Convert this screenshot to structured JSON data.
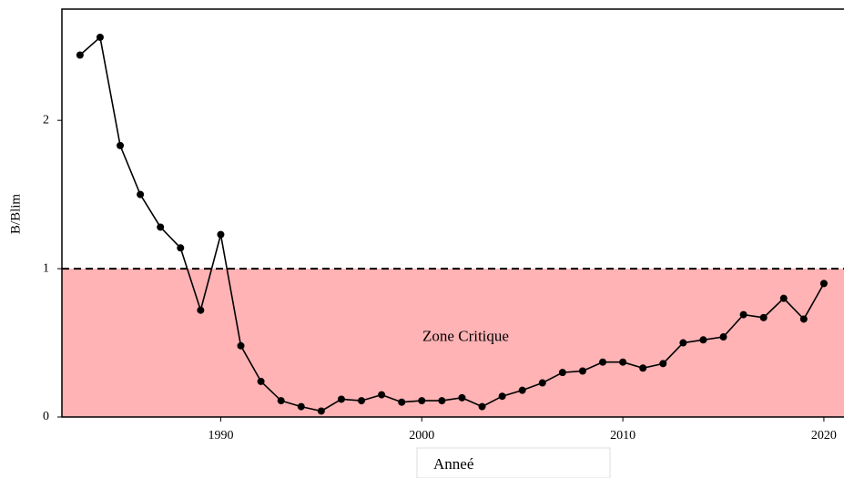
{
  "chart_data": {
    "type": "line",
    "x_label": "Anneé",
    "y_label": "B/Blim",
    "x": [
      1983,
      1984,
      1985,
      1986,
      1987,
      1988,
      1989,
      1990,
      1991,
      1992,
      1993,
      1994,
      1995,
      1996,
      1997,
      1998,
      1999,
      2000,
      2001,
      2002,
      2003,
      2004,
      2005,
      2006,
      2007,
      2008,
      2009,
      2010,
      2011,
      2012,
      2013,
      2014,
      2015,
      2016,
      2017,
      2018,
      2019,
      2020
    ],
    "series": [
      {
        "name": "B/Blim",
        "color": "#000000",
        "values": [
          2.44,
          2.56,
          1.83,
          1.5,
          1.28,
          1.14,
          0.72,
          1.23,
          0.48,
          0.24,
          0.11,
          0.07,
          0.04,
          0.12,
          0.11,
          0.15,
          0.1,
          0.11,
          0.11,
          0.13,
          0.07,
          0.14,
          0.18,
          0.23,
          0.3,
          0.31,
          0.37,
          0.37,
          0.33,
          0.36,
          0.5,
          0.52,
          0.54,
          0.69,
          0.67,
          0.8,
          0.66,
          0.9
        ]
      }
    ],
    "xlim": [
      1982.1,
      2021
    ],
    "ylim": [
      0,
      2.75
    ],
    "xticks": [
      1990,
      2000,
      2010,
      2020
    ],
    "yticks": [
      0,
      1,
      2
    ],
    "threshold": 1,
    "zone": {
      "label": "Zone Critique",
      "range": [
        0,
        1
      ],
      "color": "#ffb3b5"
    }
  }
}
